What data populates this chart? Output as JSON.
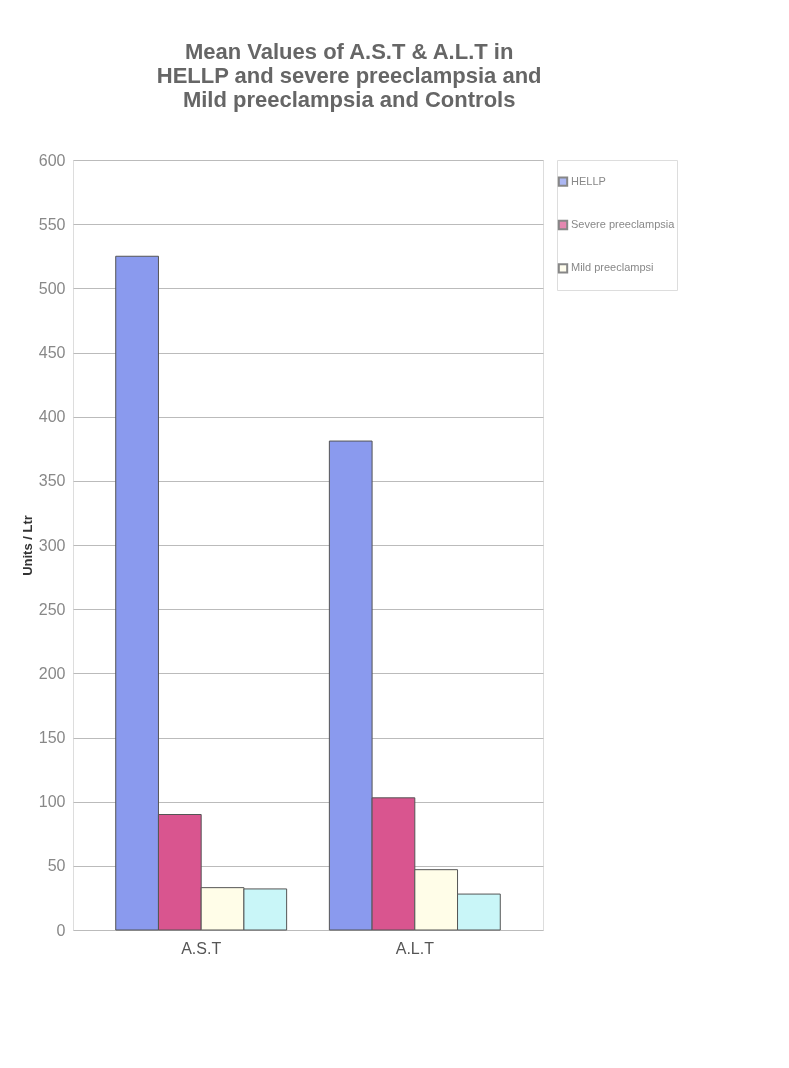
{
  "chart_data": {
    "type": "bar",
    "title": "Mean Values of A.S.T & A.L.T in\nHELLP and severe preeclampsia and\nMild preeclampsia and Controls",
    "ylabel": "Units / Ltr",
    "categories": [
      "A.S.T",
      "A.L.T"
    ],
    "series": [
      {
        "name": "HELLP",
        "color": "#8a9aee",
        "values": [
          525,
          381
        ]
      },
      {
        "name": "Severe preeclampsia",
        "color": "#d9558f",
        "values": [
          90,
          103
        ]
      },
      {
        "name": "Mild preeclampsi",
        "color": "#fffde8",
        "values": [
          33,
          47
        ]
      },
      {
        "color": "#c9f6f8",
        "values": [
          32,
          28
        ]
      }
    ],
    "ylim": [
      0,
      600
    ],
    "yticks": [
      0,
      50,
      100,
      150,
      200,
      250,
      300,
      350,
      400,
      450,
      500,
      550,
      600
    ],
    "grid": "y",
    "legend": "right"
  }
}
